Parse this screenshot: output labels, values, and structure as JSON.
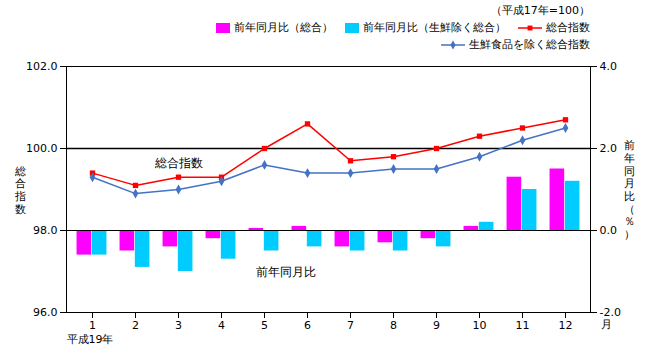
{
  "chart_data": {
    "type": "bar",
    "subtitle": "（平成17年=100）",
    "xlabel": "平成19年",
    "xlabel_right": "月",
    "ylabel": "総\n合\n指\n数",
    "y2label": "前\n年\n同\n月\n比\n（\n％\n）",
    "categories": [
      "1",
      "2",
      "3",
      "4",
      "5",
      "6",
      "7",
      "8",
      "9",
      "10",
      "11",
      "12"
    ],
    "series": [
      {
        "name": "前年同月比（総合）",
        "type": "bar",
        "axis": "y2",
        "color": "#ff00ff",
        "values": [
          -0.6,
          -0.5,
          -0.4,
          -0.2,
          0.05,
          0.1,
          -0.4,
          -0.3,
          -0.2,
          0.1,
          1.3,
          1.5
        ]
      },
      {
        "name": "前年同月比（生鮮除く総合）",
        "type": "bar",
        "axis": "y2",
        "color": "#00ccff",
        "values": [
          -0.6,
          -0.9,
          -1.0,
          -0.7,
          -0.5,
          -0.4,
          -0.5,
          -0.5,
          -0.4,
          0.2,
          1.0,
          1.2
        ]
      },
      {
        "name": "総合指数",
        "type": "line",
        "axis": "y",
        "color": "#ff0000",
        "marker": "square",
        "values": [
          99.4,
          99.1,
          99.3,
          99.3,
          100.0,
          100.6,
          99.7,
          99.8,
          100.0,
          100.3,
          100.5,
          100.7
        ]
      },
      {
        "name": "生鮮食品を除く総合指数",
        "type": "line",
        "axis": "y",
        "color": "#4472c4",
        "marker": "diamond",
        "values": [
          99.3,
          98.9,
          99.0,
          99.2,
          99.6,
          99.4,
          99.4,
          99.5,
          99.5,
          99.8,
          100.2,
          100.5
        ]
      }
    ],
    "ylim": [
      96.0,
      102.0
    ],
    "yticks": [
      {
        "value": 96.0,
        "label": "96.0"
      },
      {
        "value": 98.0,
        "label": "98.0"
      },
      {
        "value": 100.0,
        "label": "100.0"
      },
      {
        "value": 102.0,
        "label": "102.0"
      }
    ],
    "y2lim": [
      -2.0,
      4.0
    ],
    "y2ticks": [
      {
        "value": -2.0,
        "label": "-2.0"
      },
      {
        "value": 0.0,
        "label": "0.0"
      },
      {
        "value": 2.0,
        "label": "2.0"
      },
      {
        "value": 4.0,
        "label": "4.0"
      }
    ],
    "reference_lines": [
      {
        "axis": "y",
        "value": 100.0
      },
      {
        "axis": "y2",
        "value": 0.0
      }
    ],
    "annotations": [
      {
        "text": "総合指数",
        "axis": "y"
      },
      {
        "text": "前年同月比",
        "axis": "y2"
      }
    ],
    "legend": "upper right",
    "grid": false
  }
}
